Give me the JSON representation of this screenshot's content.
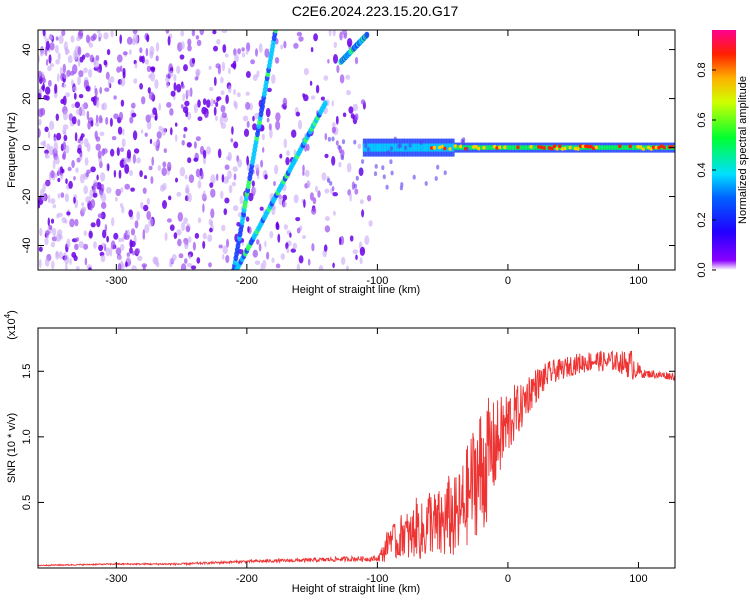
{
  "figure_title": "C2E6.2024.223.15.20.G17",
  "chart_data": [
    {
      "type": "heatmap",
      "xlabel": "Height of straight line (km)",
      "ylabel": "Frequency (Hz)",
      "xlim": [
        -360,
        128
      ],
      "ylim": [
        -50,
        48
      ],
      "xticks": [
        -300,
        -200,
        -100,
        0,
        100
      ],
      "yticks": [
        -40,
        -20,
        0,
        20,
        40
      ],
      "colorbar": {
        "label": "Normalized spectral amplitude",
        "range": [
          0,
          0.96
        ],
        "ticks": [
          0.0,
          0.2,
          0.4,
          0.6,
          0.8
        ],
        "tick_labels": [
          "0.0",
          "0.2",
          "0.4",
          "0.6",
          "0.8"
        ],
        "colormap": [
          "#7000e0",
          "#0000ff",
          "#00e0ff",
          "#00ff40",
          "#ffff00",
          "#ff8000",
          "#ff0000",
          "#ff0080"
        ]
      },
      "features": {
        "noise_region_x": [
          -360,
          -105
        ],
        "carrier_freq_hz": 0,
        "carrier_start_x": -110,
        "diagonal_lines": [
          {
            "x_start": -210,
            "freq_start": -50,
            "x_end": -178,
            "freq_end": 48
          },
          {
            "x_start": -208,
            "freq_start": -50,
            "x_end": -140,
            "freq_end": 18
          },
          {
            "x_start": -128,
            "freq_start": 35,
            "x_end": -108,
            "freq_end": 46
          }
        ]
      }
    },
    {
      "type": "line",
      "xlabel": "Height of straight line (km)",
      "ylabel": "SNR (10 * v/v)",
      "y_multiplier_label": "(x10",
      "y_multiplier_exp": "4",
      "xlim": [
        -360,
        128
      ],
      "ylim": [
        0,
        1.83
      ],
      "xticks": [
        -300,
        -200,
        -100,
        0,
        100
      ],
      "yticks": [
        0.5,
        1.0,
        1.5
      ],
      "ytick_labels": [
        "0.5",
        "1.0",
        "1.5"
      ],
      "color": "#ee3333",
      "series": [
        {
          "x": [
            -360,
            -300,
            -250,
            -200,
            -150,
            -120,
            -100,
            -95,
            -90,
            -85,
            -80,
            -75,
            -70,
            -65,
            -60,
            -55,
            -50,
            -45,
            -40,
            -35,
            -30,
            -25,
            -20,
            -15,
            -10,
            -5,
            0,
            5,
            10,
            15,
            20,
            25,
            30,
            35,
            40,
            45,
            50,
            55,
            60,
            65,
            70,
            75,
            80,
            85,
            90,
            95,
            100,
            105,
            110,
            115,
            120,
            128
          ],
          "y": [
            0.02,
            0.03,
            0.03,
            0.05,
            0.06,
            0.07,
            0.07,
            0.12,
            0.25,
            0.18,
            0.28,
            0.22,
            0.32,
            0.25,
            0.38,
            0.3,
            0.33,
            0.4,
            0.36,
            0.45,
            0.58,
            0.7,
            0.72,
            0.85,
            0.92,
            1.02,
            1.1,
            1.18,
            1.22,
            1.32,
            1.38,
            1.42,
            1.47,
            1.5,
            1.51,
            1.53,
            1.55,
            1.56,
            1.57,
            1.58,
            1.58,
            1.57,
            1.58,
            1.57,
            1.56,
            1.55,
            1.5,
            1.48,
            1.48,
            1.47,
            1.47,
            1.46
          ],
          "amplitude": [
            0.005,
            0.005,
            0.008,
            0.01,
            0.015,
            0.02,
            0.02,
            0.08,
            0.12,
            0.14,
            0.18,
            0.2,
            0.22,
            0.24,
            0.26,
            0.28,
            0.3,
            0.32,
            0.34,
            0.36,
            0.4,
            0.45,
            0.55,
            0.45,
            0.35,
            0.3,
            0.28,
            0.22,
            0.18,
            0.16,
            0.14,
            0.12,
            0.1,
            0.09,
            0.08,
            0.08,
            0.08,
            0.08,
            0.08,
            0.08,
            0.08,
            0.08,
            0.08,
            0.08,
            0.1,
            0.12,
            0.06,
            0.03,
            0.03,
            0.03,
            0.03,
            0.03
          ]
        }
      ]
    }
  ]
}
